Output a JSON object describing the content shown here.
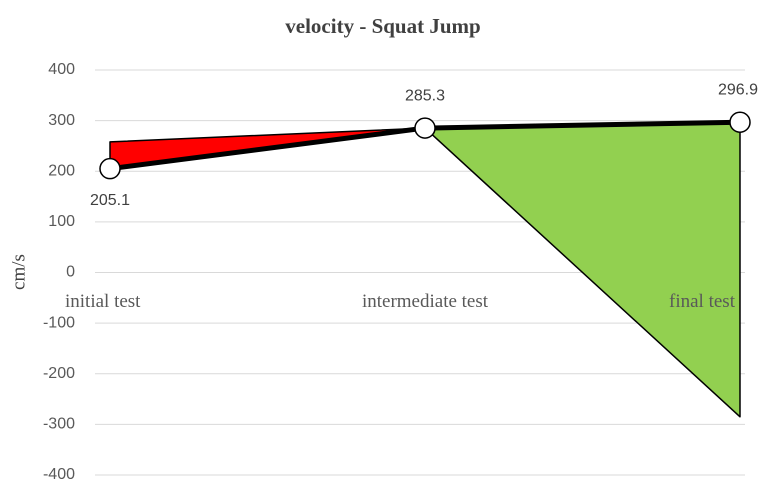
{
  "chart_data": {
    "type": "line",
    "title": "velocity - Squat Jump",
    "y_label": "cm/s",
    "categories": [
      "initial test",
      "intermediate test",
      "final test"
    ],
    "series": [
      {
        "values": [
          205.1,
          285.3,
          296.9
        ],
        "color": "#000000"
      }
    ],
    "value_labels": [
      "205.1",
      "285.3",
      "296.9"
    ],
    "band": {
      "values": [
        258,
        285.3,
        -285
      ],
      "up_color": "#ff0000",
      "down_color": "#92d050"
    },
    "ylim": [
      -400,
      400
    ],
    "yticks": [
      -400,
      -300,
      -200,
      -100,
      0,
      100,
      200,
      300,
      400
    ],
    "grid": true
  }
}
